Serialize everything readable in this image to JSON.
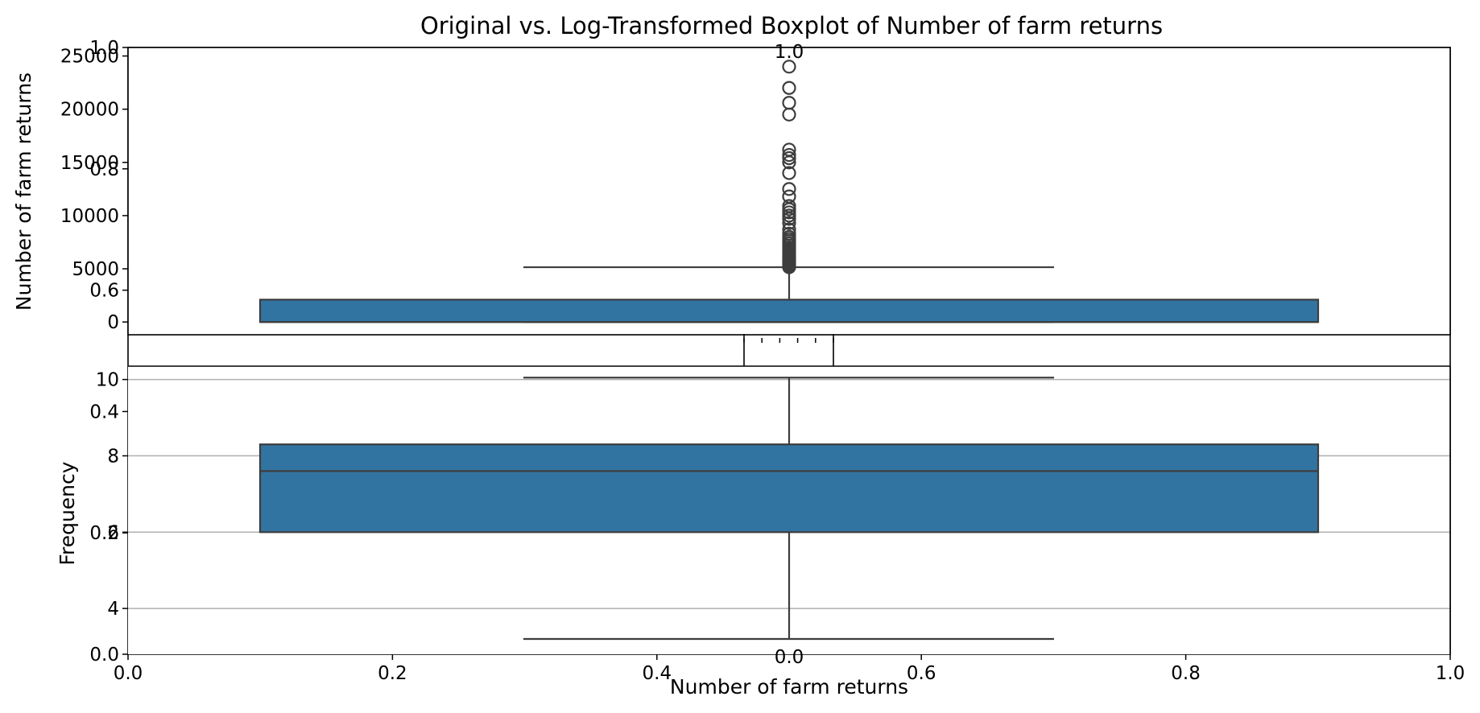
{
  "chart_data": [
    {
      "type": "boxplot",
      "title": "Original vs. Log-Transformed Boxplot of Number of farm returns",
      "ylabel": "Number of farm returns",
      "xlabel": "",
      "ylim": [
        -1200,
        25800
      ],
      "yticks": [
        0,
        5000,
        10000,
        15000,
        20000,
        25000
      ],
      "ytick_labels": [
        "0",
        "5000",
        "10000",
        "15000",
        "20000",
        "25000"
      ],
      "grid": false,
      "box": {
        "q1": 0,
        "median": 0,
        "q3": 2100,
        "whisker_low": 0,
        "whisker_high": 5150
      },
      "outliers": [
        5150,
        5300,
        5450,
        5600,
        5750,
        5900,
        6050,
        6200,
        6400,
        6600,
        6800,
        7000,
        7200,
        7400,
        7600,
        7800,
        8000,
        8300,
        8700,
        9300,
        9700,
        10000,
        10300,
        10600,
        10900,
        11800,
        12500,
        14000,
        15000,
        15400,
        15700,
        16200,
        19500,
        20600,
        22000,
        24000
      ],
      "color": "#3274a1"
    },
    {
      "type": "boxplot",
      "title": "",
      "ylabel": "Frequency",
      "xlabel": "Number of farm returns",
      "ylim": [
        2.8,
        10.35
      ],
      "yticks": [
        4,
        6,
        8,
        10
      ],
      "ytick_labels": [
        "4",
        "6",
        "8",
        "10"
      ],
      "grid": true,
      "box": {
        "q1": 6.0,
        "median": 7.6,
        "q3": 8.3,
        "whisker_low": 3.2,
        "whisker_high": 10.05
      },
      "outliers": [],
      "color": "#3274a1"
    },
    {
      "type": "empty",
      "title": "",
      "ylim": [
        0,
        1
      ],
      "yticks": [
        0.0,
        0.2,
        0.4,
        0.6,
        0.8,
        1.0
      ],
      "ytick_labels": [
        "0.0",
        "0.2",
        "0.4",
        "0.6",
        "0.8",
        "1.0"
      ],
      "xlim": [
        0,
        1
      ],
      "xticks": [
        0.0,
        0.2,
        0.4,
        0.6,
        0.8,
        1.0
      ],
      "xtick_labels": [
        "0.0",
        "0.2",
        "0.4",
        "0.6",
        "0.8",
        "1.0"
      ]
    },
    {
      "type": "empty",
      "title": "",
      "ylim": [
        0,
        1
      ],
      "yticks": [
        0.0,
        1.0
      ],
      "ytick_labels": [
        "0.0",
        "1.0"
      ],
      "xlim": [
        0,
        1
      ],
      "xticks": [
        0.0,
        0.2,
        0.4,
        0.6,
        0.8,
        1.0
      ],
      "xtick_labels": [
        "0.0",
        "0.2",
        "0.4",
        "0.6",
        "0.8",
        "1.0"
      ]
    }
  ]
}
